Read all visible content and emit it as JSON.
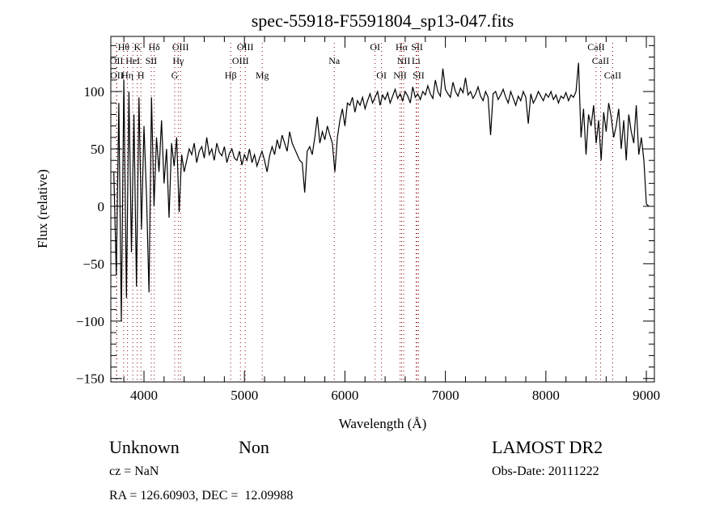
{
  "chart_data": {
    "type": "line",
    "title": "spec-55918-F5591804_sp13-047.fits",
    "xlabel": "Wavelength (Å)",
    "ylabel": "Flux (relative)",
    "xlim": [
      3670,
      9080
    ],
    "ylim": [
      -153,
      148
    ],
    "x_ticks": [
      4000,
      5000,
      6000,
      7000,
      8000,
      9000
    ],
    "x_tick_labels": [
      "4000",
      "5000",
      "6000",
      "7000",
      "8000",
      "9000"
    ],
    "y_ticks": [
      100,
      50,
      0,
      -50,
      -100,
      -150
    ],
    "y_tick_labels": [
      "100",
      "50",
      "0",
      "−50",
      "−100",
      "−150"
    ],
    "grid": false,
    "series": [
      {
        "name": "spectrum",
        "x_start": 3700,
        "x_step": 25,
        "values": [
          30,
          -60,
          90,
          -100,
          110,
          -80,
          100,
          -40,
          80,
          -70,
          95,
          -20,
          70,
          10,
          -75,
          95,
          0,
          60,
          30,
          75,
          20,
          50,
          -10,
          55,
          35,
          60,
          -5,
          45,
          30,
          40,
          50,
          45,
          55,
          38,
          48,
          52,
          42,
          60,
          45,
          50,
          40,
          55,
          47,
          44,
          52,
          38,
          46,
          50,
          42,
          40,
          48,
          36,
          45,
          40,
          50,
          38,
          45,
          35,
          42,
          48,
          40,
          30,
          44,
          52,
          45,
          58,
          50,
          62,
          55,
          48,
          65,
          55,
          50,
          45,
          40,
          38,
          12,
          48,
          52,
          45,
          60,
          78,
          55,
          65,
          58,
          70,
          62,
          55,
          30,
          60,
          75,
          85,
          70,
          90,
          88,
          95,
          82,
          92,
          88,
          95,
          85,
          92,
          98,
          90,
          95,
          100,
          88,
          97,
          93,
          99,
          90,
          96,
          102,
          94,
          98,
          92,
          100,
          96,
          90,
          104,
          95,
          98,
          93,
          100,
          97,
          105,
          98,
          94,
          110,
          100,
          96,
          120,
          102,
          98,
          95,
          108,
          100,
          96,
          103,
          99,
          112,
          97,
          100,
          94,
          98,
          104,
          96,
          92,
          100,
          95,
          62,
          98,
          100,
          93,
          97,
          102,
          95,
          90,
          100,
          94,
          88,
          96,
          92,
          100,
          95,
          72,
          98,
          90,
          94,
          100,
          96,
          92,
          98,
          95,
          100,
          93,
          97,
          90,
          96,
          94,
          99,
          92,
          97,
          95,
          100,
          125,
          60,
          85,
          45,
          80,
          70,
          88,
          55,
          75,
          40,
          82,
          65,
          90,
          78,
          60,
          70,
          85,
          50,
          75,
          40,
          80,
          65,
          55,
          88,
          45,
          60,
          40,
          2,
          0
        ]
      }
    ],
    "line_markers": [
      {
        "label": "Hθ",
        "wavelength": 3798,
        "row": 1
      },
      {
        "label": "K",
        "wavelength": 3934,
        "row": 1
      },
      {
        "label": "Hδ",
        "wavelength": 4102,
        "row": 1
      },
      {
        "label": "OIII",
        "wavelength": 4364,
        "row": 1
      },
      {
        "label": "OIII",
        "wavelength": 5008,
        "row": 1
      },
      {
        "label": "OI",
        "wavelength": 6300,
        "row": 1
      },
      {
        "label": "Hα",
        "wavelength": 6564,
        "row": 1
      },
      {
        "label": "SII",
        "wavelength": 6718,
        "row": 1
      },
      {
        "label": "CaII",
        "wavelength": 8500,
        "row": 1
      },
      {
        "label": "OII",
        "wavelength": 3727,
        "row": 2
      },
      {
        "label": "HeI",
        "wavelength": 3889,
        "row": 2
      },
      {
        "label": "SII",
        "wavelength": 4072,
        "row": 2
      },
      {
        "label": "Hγ",
        "wavelength": 4341,
        "row": 2
      },
      {
        "label": "OIII",
        "wavelength": 4960,
        "row": 2
      },
      {
        "label": "Na",
        "wavelength": 5894,
        "row": 2
      },
      {
        "label": "NII",
        "wavelength": 6585,
        "row": 2
      },
      {
        "label": "Li",
        "wavelength": 6708,
        "row": 2
      },
      {
        "label": "CaII",
        "wavelength": 8544,
        "row": 2
      },
      {
        "label": "OII",
        "wavelength": 3730,
        "row": 3
      },
      {
        "label": "Hη",
        "wavelength": 3836,
        "row": 3
      },
      {
        "label": "H",
        "wavelength": 3970,
        "row": 3
      },
      {
        "label": "G",
        "wavelength": 4306,
        "row": 3
      },
      {
        "label": "Hβ",
        "wavelength": 4863,
        "row": 3
      },
      {
        "label": "Mg",
        "wavelength": 5177,
        "row": 3
      },
      {
        "label": "OI",
        "wavelength": 6364,
        "row": 3
      },
      {
        "label": "NII",
        "wavelength": 6549,
        "row": 3
      },
      {
        "label": "SII",
        "wavelength": 6733,
        "row": 3
      },
      {
        "label": "CaII",
        "wavelength": 8665,
        "row": 3
      }
    ],
    "colors": {
      "line": "#000000",
      "markers": "#8b0000"
    }
  },
  "info": {
    "class": "Unknown",
    "subclass": "Non",
    "survey": "LAMOST DR2",
    "cz": "cz = NaN",
    "obs_date": "Obs-Date: 20111222",
    "coords": "RA = 126.60903, DEC =  12.09988"
  }
}
